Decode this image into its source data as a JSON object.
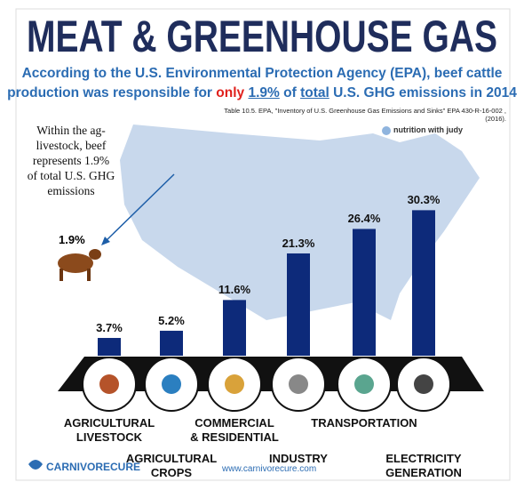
{
  "chart_data": {
    "type": "bar",
    "title": "MEAT & GREENHOUSE GAS",
    "subtitle_line1": "According to the U.S. Environmental Protection Agency (EPA), beef cattle",
    "subtitle_line2": [
      "production was responsible for",
      "only",
      "1.9%",
      "of",
      "total",
      "U.S. GHG emissions in 2014"
    ],
    "source": "Table 10.5. EPA, \"Inventory of U.S. Greenhouse Gas Emissions and Sinks\" EPA 430-R-16-002 , (2016).",
    "brand": "nutrition with judy",
    "annotation": "Within the ag-livestock, beef represents 1.9% of total U.S. GHG emissions",
    "annotation_value": 1.9,
    "annotation_value_label": "1.9%",
    "categories": [
      "AGRICULTURAL\nLIVESTOCK",
      "AGRICULTURAL\nCROPS",
      "COMMERCIAL\n& RESIDENTIAL",
      "INDUSTRY",
      "TRANSPORTATION",
      "ELECTRICITY\nGENERATION"
    ],
    "values": [
      3.7,
      5.2,
      11.6,
      21.3,
      26.4,
      30.3
    ],
    "value_labels": [
      "3.7%",
      "5.2%",
      "11.6%",
      "21.3%",
      "26.4%",
      "30.3%"
    ],
    "color": "#0d2a7a",
    "footer_brand": "CARNIVORECURE",
    "website": "www.carnivorecure.com"
  }
}
